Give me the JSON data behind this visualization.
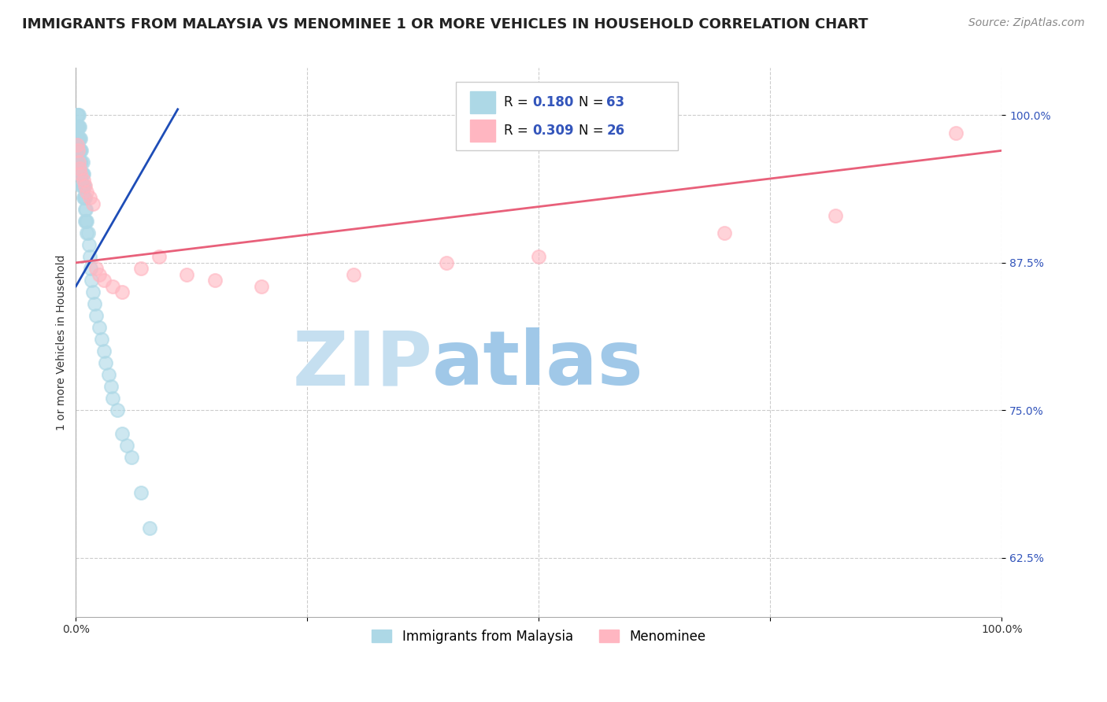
{
  "title": "IMMIGRANTS FROM MALAYSIA VS MENOMINEE 1 OR MORE VEHICLES IN HOUSEHOLD CORRELATION CHART",
  "source": "Source: ZipAtlas.com",
  "ylabel": "1 or more Vehicles in Household",
  "y_tick_labels": [
    "62.5%",
    "75.0%",
    "87.5%",
    "100.0%"
  ],
  "y_tick_values": [
    0.625,
    0.75,
    0.875,
    1.0
  ],
  "xlim": [
    0.0,
    1.0
  ],
  "ylim": [
    0.575,
    1.04
  ],
  "legend_r1": "R = 0.180",
  "legend_n1": "N = 63",
  "legend_r2": "R = 0.309",
  "legend_n2": "N = 26",
  "color_blue": "#ADD8E6",
  "color_pink": "#FFB6C1",
  "line_blue": "#1E4DB7",
  "line_pink": "#E8607A",
  "label1": "Immigrants from Malaysia",
  "label2": "Menominee",
  "blue_x": [
    0.001,
    0.001,
    0.001,
    0.002,
    0.002,
    0.002,
    0.002,
    0.002,
    0.003,
    0.003,
    0.003,
    0.003,
    0.003,
    0.003,
    0.004,
    0.004,
    0.004,
    0.004,
    0.004,
    0.005,
    0.005,
    0.005,
    0.005,
    0.006,
    0.006,
    0.006,
    0.006,
    0.007,
    0.007,
    0.007,
    0.008,
    0.008,
    0.008,
    0.009,
    0.009,
    0.01,
    0.01,
    0.01,
    0.011,
    0.011,
    0.012,
    0.012,
    0.013,
    0.014,
    0.015,
    0.016,
    0.017,
    0.018,
    0.02,
    0.022,
    0.025,
    0.028,
    0.03,
    0.032,
    0.035,
    0.038,
    0.04,
    0.045,
    0.05,
    0.055,
    0.06,
    0.07,
    0.08
  ],
  "blue_y": [
    1.0,
    0.99,
    0.98,
    1.0,
    0.99,
    0.98,
    0.97,
    0.96,
    1.0,
    0.99,
    0.98,
    0.97,
    0.96,
    0.95,
    0.99,
    0.98,
    0.97,
    0.96,
    0.95,
    0.98,
    0.97,
    0.96,
    0.95,
    0.97,
    0.96,
    0.95,
    0.94,
    0.96,
    0.95,
    0.94,
    0.95,
    0.94,
    0.93,
    0.94,
    0.93,
    0.93,
    0.92,
    0.91,
    0.92,
    0.91,
    0.91,
    0.9,
    0.9,
    0.89,
    0.88,
    0.87,
    0.86,
    0.85,
    0.84,
    0.83,
    0.82,
    0.81,
    0.8,
    0.79,
    0.78,
    0.77,
    0.76,
    0.75,
    0.73,
    0.72,
    0.71,
    0.68,
    0.65
  ],
  "pink_x": [
    0.001,
    0.002,
    0.003,
    0.004,
    0.005,
    0.008,
    0.01,
    0.012,
    0.015,
    0.018,
    0.022,
    0.025,
    0.03,
    0.04,
    0.05,
    0.07,
    0.09,
    0.12,
    0.15,
    0.2,
    0.3,
    0.4,
    0.5,
    0.7,
    0.82,
    0.95
  ],
  "pink_y": [
    0.975,
    0.97,
    0.96,
    0.955,
    0.95,
    0.945,
    0.94,
    0.935,
    0.93,
    0.925,
    0.87,
    0.865,
    0.86,
    0.855,
    0.85,
    0.87,
    0.88,
    0.865,
    0.86,
    0.855,
    0.865,
    0.875,
    0.88,
    0.9,
    0.915,
    0.985
  ],
  "blue_line_x": [
    0.0,
    0.11
  ],
  "blue_line_y": [
    0.855,
    1.005
  ],
  "pink_line_x": [
    0.0,
    1.0
  ],
  "pink_line_y": [
    0.875,
    0.97
  ],
  "watermark_zip": "ZIP",
  "watermark_atlas": "atlas",
  "watermark_color_zip": "#C5DFF0",
  "watermark_color_atlas": "#A0C8E8",
  "background_color": "#FFFFFF",
  "grid_color": "#CCCCCC",
  "title_fontsize": 13,
  "source_fontsize": 10,
  "axis_label_fontsize": 10,
  "tick_fontsize": 10,
  "legend_fontsize": 12,
  "r_value_color": "#3355BB",
  "tick_color_right": "#3355BB"
}
